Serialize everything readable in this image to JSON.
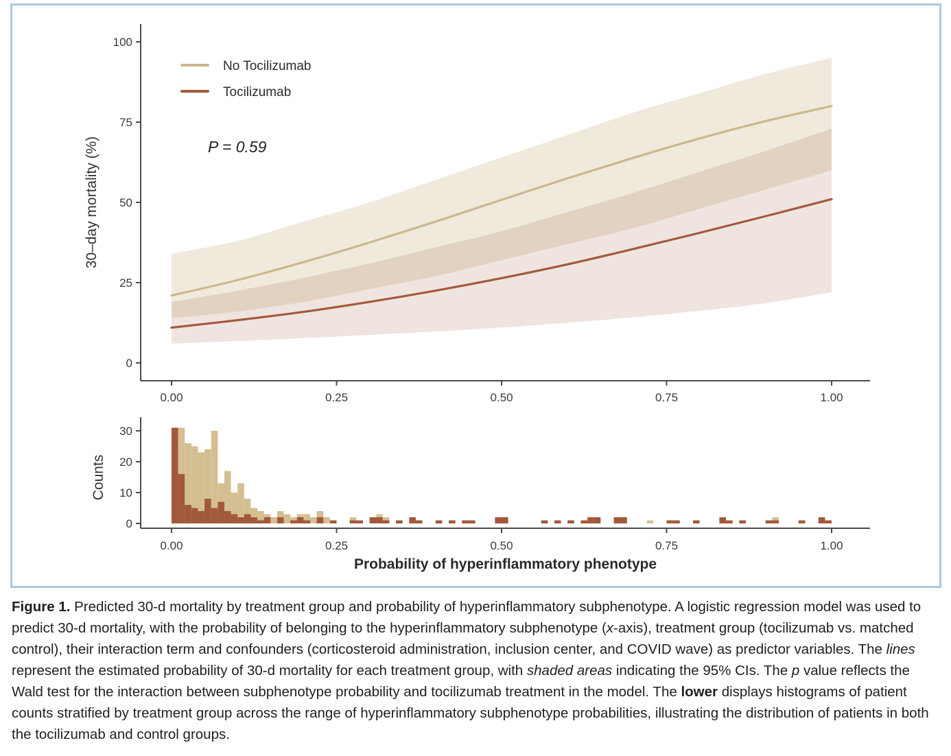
{
  "page": {
    "border_color": "#a9cbdc",
    "background": "#ffffff",
    "axis_color": "#4a4a4a",
    "tick_text_color": "#3a3a3a",
    "caption_text_color": "#1f1f1f"
  },
  "chart_data": [
    {
      "type": "line",
      "title": "",
      "xlabel": "",
      "ylabel": "30–day mortality (%)",
      "xlim": [
        0,
        1
      ],
      "ylim": [
        0,
        100
      ],
      "grid": false,
      "legend_position": "top-left-inside",
      "annotation": "P = 0.59",
      "x_ticks": [
        "0.00",
        "0.25",
        "0.50",
        "0.75",
        "1.00"
      ],
      "y_ticks": [
        "0",
        "25",
        "50",
        "75",
        "100"
      ],
      "x": [
        0,
        0.1,
        0.2,
        0.3,
        0.4,
        0.5,
        0.6,
        0.7,
        0.8,
        0.9,
        1.0
      ],
      "series": [
        {
          "name": "No Tocilizumab",
          "color": "#cbb88c",
          "band_color": "rgba(203,184,140,0.30)",
          "values": [
            21.0,
            25.8,
            31.4,
            37.5,
            44.0,
            50.8,
            57.5,
            63.9,
            69.9,
            75.3,
            80.0
          ],
          "ci_upper": [
            34,
            38,
            44,
            50,
            57,
            64,
            71,
            78,
            84,
            90,
            95
          ],
          "ci_lower": [
            14,
            16,
            19,
            23,
            27,
            32,
            37,
            42,
            48,
            54,
            60
          ]
        },
        {
          "name": "Tocilizumab",
          "color": "#a35a3d",
          "band_color": "rgba(163,90,61,0.16)",
          "values": [
            11.0,
            13.3,
            15.9,
            19.0,
            22.5,
            26.4,
            30.7,
            35.5,
            40.5,
            45.7,
            51.0
          ],
          "ci_upper": [
            19,
            22.5,
            26.5,
            31,
            36,
            41,
            47,
            53,
            59.5,
            66,
            73
          ],
          "ci_lower": [
            6,
            6.8,
            7.7,
            8.7,
            9.8,
            11,
            12.5,
            14.2,
            16.2,
            18.6,
            22
          ]
        }
      ]
    },
    {
      "type": "bar",
      "title": "",
      "xlabel": "Probability of hyperinflammatory phenotype",
      "ylabel": "Counts",
      "xlim": [
        0,
        1
      ],
      "ylim": [
        0,
        31
      ],
      "grid": false,
      "bin_width": 0.01,
      "x_ticks": [
        "0.00",
        "0.25",
        "0.50",
        "0.75",
        "1.00"
      ],
      "y_ticks": [
        "0",
        "10",
        "20",
        "30"
      ],
      "series": [
        {
          "name": "No Tocilizumab",
          "color": "#d4bf93",
          "bins": [
            [
              0.0,
              27
            ],
            [
              0.01,
              31
            ],
            [
              0.02,
              26
            ],
            [
              0.03,
              25
            ],
            [
              0.04,
              23
            ],
            [
              0.05,
              24
            ],
            [
              0.06,
              30
            ],
            [
              0.07,
              13
            ],
            [
              0.08,
              17
            ],
            [
              0.09,
              10
            ],
            [
              0.1,
              13
            ],
            [
              0.11,
              8
            ],
            [
              0.12,
              5
            ],
            [
              0.13,
              4
            ],
            [
              0.14,
              3
            ],
            [
              0.15,
              2
            ],
            [
              0.16,
              4
            ],
            [
              0.17,
              3
            ],
            [
              0.18,
              2
            ],
            [
              0.19,
              3
            ],
            [
              0.2,
              3
            ],
            [
              0.21,
              2
            ],
            [
              0.22,
              4
            ],
            [
              0.23,
              2
            ],
            [
              0.24,
              1
            ],
            [
              0.27,
              2
            ],
            [
              0.3,
              2
            ],
            [
              0.31,
              3
            ],
            [
              0.32,
              2
            ],
            [
              0.34,
              1
            ],
            [
              0.36,
              2
            ],
            [
              0.37,
              1
            ],
            [
              0.4,
              1
            ],
            [
              0.42,
              1
            ],
            [
              0.45,
              1
            ],
            [
              0.49,
              1
            ],
            [
              0.5,
              1
            ],
            [
              0.58,
              1
            ],
            [
              0.62,
              1
            ],
            [
              0.64,
              1
            ],
            [
              0.68,
              2
            ],
            [
              0.72,
              1
            ],
            [
              0.75,
              1
            ],
            [
              0.83,
              1
            ],
            [
              0.84,
              1
            ],
            [
              0.9,
              1
            ],
            [
              0.91,
              2
            ],
            [
              0.98,
              2
            ],
            [
              0.99,
              1
            ]
          ]
        },
        {
          "name": "Tocilizumab",
          "color": "#a2593a",
          "bins": [
            [
              0.0,
              31
            ],
            [
              0.01,
              16
            ],
            [
              0.02,
              6
            ],
            [
              0.03,
              5
            ],
            [
              0.04,
              4
            ],
            [
              0.05,
              8
            ],
            [
              0.06,
              5
            ],
            [
              0.07,
              7
            ],
            [
              0.08,
              4
            ],
            [
              0.09,
              3
            ],
            [
              0.1,
              2
            ],
            [
              0.11,
              3
            ],
            [
              0.12,
              2
            ],
            [
              0.13,
              1
            ],
            [
              0.14,
              2
            ],
            [
              0.16,
              2
            ],
            [
              0.18,
              1
            ],
            [
              0.19,
              2
            ],
            [
              0.2,
              1
            ],
            [
              0.22,
              2
            ],
            [
              0.24,
              1
            ],
            [
              0.27,
              1
            ],
            [
              0.28,
              1
            ],
            [
              0.3,
              2
            ],
            [
              0.31,
              2
            ],
            [
              0.32,
              1
            ],
            [
              0.34,
              1
            ],
            [
              0.36,
              2
            ],
            [
              0.37,
              1
            ],
            [
              0.4,
              1
            ],
            [
              0.42,
              1
            ],
            [
              0.44,
              1
            ],
            [
              0.45,
              1
            ],
            [
              0.49,
              2
            ],
            [
              0.5,
              2
            ],
            [
              0.56,
              1
            ],
            [
              0.58,
              1
            ],
            [
              0.6,
              1
            ],
            [
              0.62,
              1
            ],
            [
              0.63,
              2
            ],
            [
              0.64,
              2
            ],
            [
              0.67,
              2
            ],
            [
              0.68,
              2
            ],
            [
              0.75,
              1
            ],
            [
              0.76,
              1
            ],
            [
              0.79,
              1
            ],
            [
              0.83,
              2
            ],
            [
              0.84,
              1
            ],
            [
              0.86,
              1
            ],
            [
              0.9,
              1
            ],
            [
              0.91,
              1
            ],
            [
              0.95,
              1
            ],
            [
              0.98,
              2
            ],
            [
              0.99,
              1
            ]
          ]
        }
      ]
    }
  ],
  "legend": {
    "items": [
      {
        "label": "No Tocilizumab",
        "color": "#cbb88c"
      },
      {
        "label": "Tocilizumab",
        "color": "#a35a3d"
      }
    ]
  },
  "annotation": {
    "p_value_text": "P = 0.59"
  },
  "caption": {
    "segments": [
      {
        "text": "Figure 1.",
        "bold": true
      },
      {
        "text": " Predicted 30-d mortality by treatment group and probability of hyperinflammatory subphenotype. A logistic regression model was used to predict 30-d mortality, with the probability of belonging to the hyperinflammatory subphenotype ("
      },
      {
        "text": "x",
        "italic": true
      },
      {
        "text": "-axis), treatment group (tocilizumab vs. matched control), their interaction term and confounders (corticosteroid administration, inclusion center, and COVID wave) as predictor variables. The "
      },
      {
        "text": "lines",
        "italic": true
      },
      {
        "text": " represent the estimated probability of 30-d mortality for each treatment group, with "
      },
      {
        "text": "shaded areas",
        "italic": true
      },
      {
        "text": " indicating the 95% CIs. The "
      },
      {
        "text": "p",
        "italic": true
      },
      {
        "text": " value reflects the Wald test for the interaction between subphenotype probability and tocilizumab treatment in the model. The "
      },
      {
        "text": "lower",
        "bold": true
      },
      {
        "text": " displays histograms of patient counts stratified by treatment group across the range of hyperinflammatory subphenotype probabilities, illustrating the distribution of patients in both the tocilizumab and control groups."
      }
    ]
  }
}
